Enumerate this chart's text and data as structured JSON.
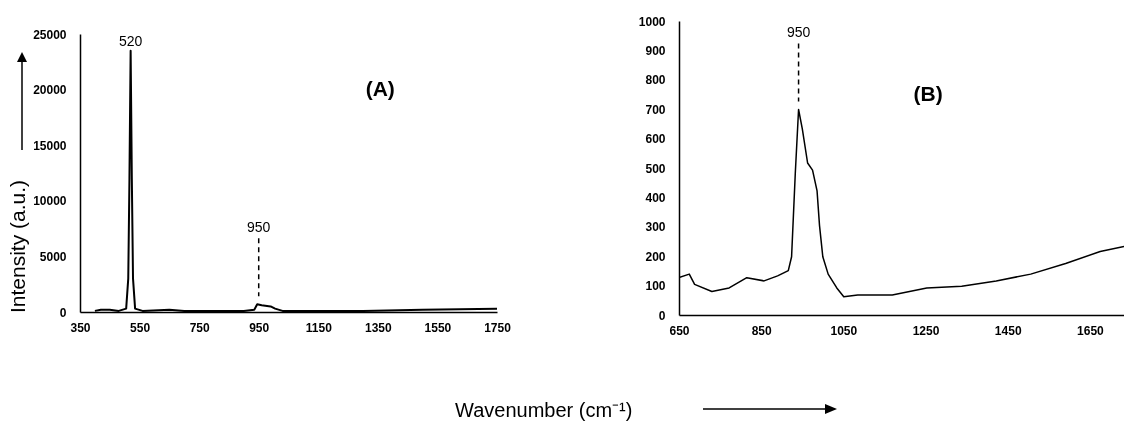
{
  "chart_data": [
    {
      "type": "line",
      "ylabel": "Intensity (a.u.)",
      "xlim": [
        350,
        1750
      ],
      "xticks": [
        350,
        550,
        750,
        950,
        1150,
        1350,
        1550,
        1750
      ],
      "ylim": [
        0,
        25000
      ],
      "yticks": [
        0,
        5000,
        10000,
        15000,
        20000,
        25000
      ],
      "grid": false,
      "series": [
        {
          "color": "#000000",
          "x": [
            400,
            420,
            450,
            480,
            505,
            512,
            516,
            520,
            524,
            528,
            535,
            560,
            650,
            700,
            900,
            935,
            945,
            960,
            990,
            1005,
            1030,
            1100,
            1300,
            1500,
            1750
          ],
          "values": [
            100,
            200,
            200,
            100,
            300,
            3000,
            12000,
            23500,
            12000,
            3000,
            300,
            100,
            200,
            100,
            100,
            200,
            700,
            600,
            500,
            300,
            100,
            100,
            100,
            200,
            300
          ]
        }
      ],
      "annotations": [
        {
          "text": "520",
          "x": 520,
          "y": 23500
        },
        {
          "text": "950",
          "x": 950,
          "y": 700
        },
        "(A)"
      ]
    },
    {
      "type": "line",
      "xlabel": "Wavenumber (cm⁻¹)",
      "xlim": [
        650,
        1733
      ],
      "xticks": [
        650,
        850,
        1050,
        1250,
        1450,
        1650
      ],
      "ylim": [
        0,
        1000
      ],
      "yticks": [
        0,
        100,
        200,
        300,
        400,
        500,
        600,
        700,
        800,
        900,
        1000
      ],
      "grid": false,
      "series": [
        {
          "color": "#000000",
          "x": [
            650,
            675,
            688,
            730,
            772,
            815,
            857,
            890,
            916,
            924,
            933,
            941,
            950,
            963,
            975,
            986,
            992,
            1000,
            1013,
            1034,
            1051,
            1085,
            1169,
            1253,
            1338,
            1422,
            1506,
            1591,
            1675,
            1733
          ],
          "values": [
            127,
            139,
            104,
            80,
            92,
            127,
            116,
            133,
            151,
            198,
            481,
            699,
            634,
            517,
            493,
            422,
            304,
            198,
            139,
            92,
            62,
            68,
            68,
            92,
            98,
            116,
            139,
            175,
            216,
            233
          ]
        }
      ],
      "annotations": [
        {
          "text": "950",
          "x": 941,
          "y": 699
        },
        "(B)"
      ]
    }
  ]
}
